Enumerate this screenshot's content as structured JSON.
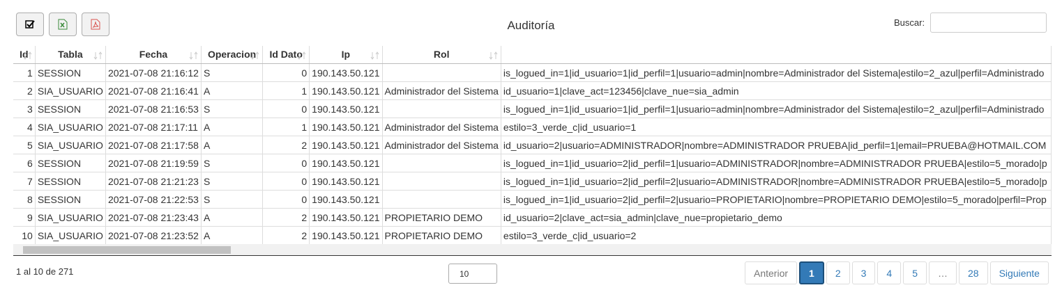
{
  "header": {
    "title": "Auditoría",
    "search_label": "Buscar:"
  },
  "table": {
    "columns": [
      "Id",
      "Tabla",
      "Fecha",
      "Operacion",
      "Id Dato",
      "Ip",
      "Rol"
    ],
    "rows": [
      {
        "id": 1,
        "tabla": "SESSION",
        "fecha": "2021-07-08 21:16:12",
        "operacion": "S",
        "id_dato": 0,
        "ip": "190.143.50.121",
        "datos": "is_logued_in=1|id_usuario=1|id_perfil=1|usuario=admin|nombre=Administrador del Sistema|estilo=2_azul|perfil=Administrado"
      },
      {
        "id": 2,
        "tabla": "SIA_USUARIO",
        "fecha": "2021-07-08 21:16:41",
        "operacion": "A",
        "id_dato": 1,
        "ip": "190.143.50.121",
        "rol": "Administrador del Sistema",
        "datos": "id_usuario=1|clave_act=123456|clave_nue=sia_admin"
      },
      {
        "id": 3,
        "tabla": "SESSION",
        "fecha": "2021-07-08 21:16:53",
        "operacion": "S",
        "id_dato": 0,
        "ip": "190.143.50.121",
        "datos": "is_logued_in=1|id_usuario=1|id_perfil=1|usuario=admin|nombre=Administrador del Sistema|estilo=2_azul|perfil=Administrado"
      },
      {
        "id": 4,
        "tabla": "SIA_USUARIO",
        "fecha": "2021-07-08 21:17:11",
        "operacion": "A",
        "id_dato": 1,
        "ip": "190.143.50.121",
        "rol": "Administrador del Sistema",
        "datos": "estilo=3_verde_c|id_usuario=1"
      },
      {
        "id": 5,
        "tabla": "SIA_USUARIO",
        "fecha": "2021-07-08 21:17:58",
        "operacion": "A",
        "id_dato": 2,
        "ip": "190.143.50.121",
        "rol": "Administrador del Sistema",
        "datos": "id_usuario=2|usuario=ADMINISTRADOR|nombre=ADMINISTRADOR PRUEBA|id_perfil=1|email=PRUEBA@HOTMAIL.COM"
      },
      {
        "id": 6,
        "tabla": "SESSION",
        "fecha": "2021-07-08 21:19:59",
        "operacion": "S",
        "id_dato": 0,
        "ip": "190.143.50.121",
        "datos": "is_logued_in=1|id_usuario=2|id_perfil=1|usuario=ADMINISTRADOR|nombre=ADMINISTRADOR PRUEBA|estilo=5_morado|p"
      },
      {
        "id": 7,
        "tabla": "SESSION",
        "fecha": "2021-07-08 21:21:23",
        "operacion": "S",
        "id_dato": 0,
        "ip": "190.143.50.121",
        "datos": "is_logued_in=1|id_usuario=2|id_perfil=2|usuario=ADMINISTRADOR|nombre=ADMINISTRADOR PRUEBA|estilo=5_morado|p"
      },
      {
        "id": 8,
        "tabla": "SESSION",
        "fecha": "2021-07-08 21:22:53",
        "operacion": "S",
        "id_dato": 0,
        "ip": "190.143.50.121",
        "datos": "is_logued_in=1|id_usuario=2|id_perfil=2|usuario=PROPIETARIO|nombre=PROPIETARIO DEMO|estilo=5_morado|perfil=Prop"
      },
      {
        "id": 9,
        "tabla": "SIA_USUARIO",
        "fecha": "2021-07-08 21:23:43",
        "operacion": "A",
        "id_dato": 2,
        "ip": "190.143.50.121",
        "rol": "PROPIETARIO DEMO",
        "datos": "id_usuario=2|clave_act=sia_admin|clave_nue=propietario_demo"
      },
      {
        "id": 10,
        "tabla": "SIA_USUARIO",
        "fecha": "2021-07-08 21:23:52",
        "operacion": "A",
        "id_dato": 2,
        "ip": "190.143.50.121",
        "rol": "PROPIETARIO DEMO",
        "datos": "estilo=3_verde_c|id_usuario=2"
      }
    ]
  },
  "footer": {
    "info": "1 al 10 de 271",
    "page_length": "10",
    "pagination": [
      "Anterior",
      "1",
      "2",
      "3",
      "4",
      "5",
      "…",
      "28",
      "Siguiente"
    ],
    "active_page": "1"
  }
}
